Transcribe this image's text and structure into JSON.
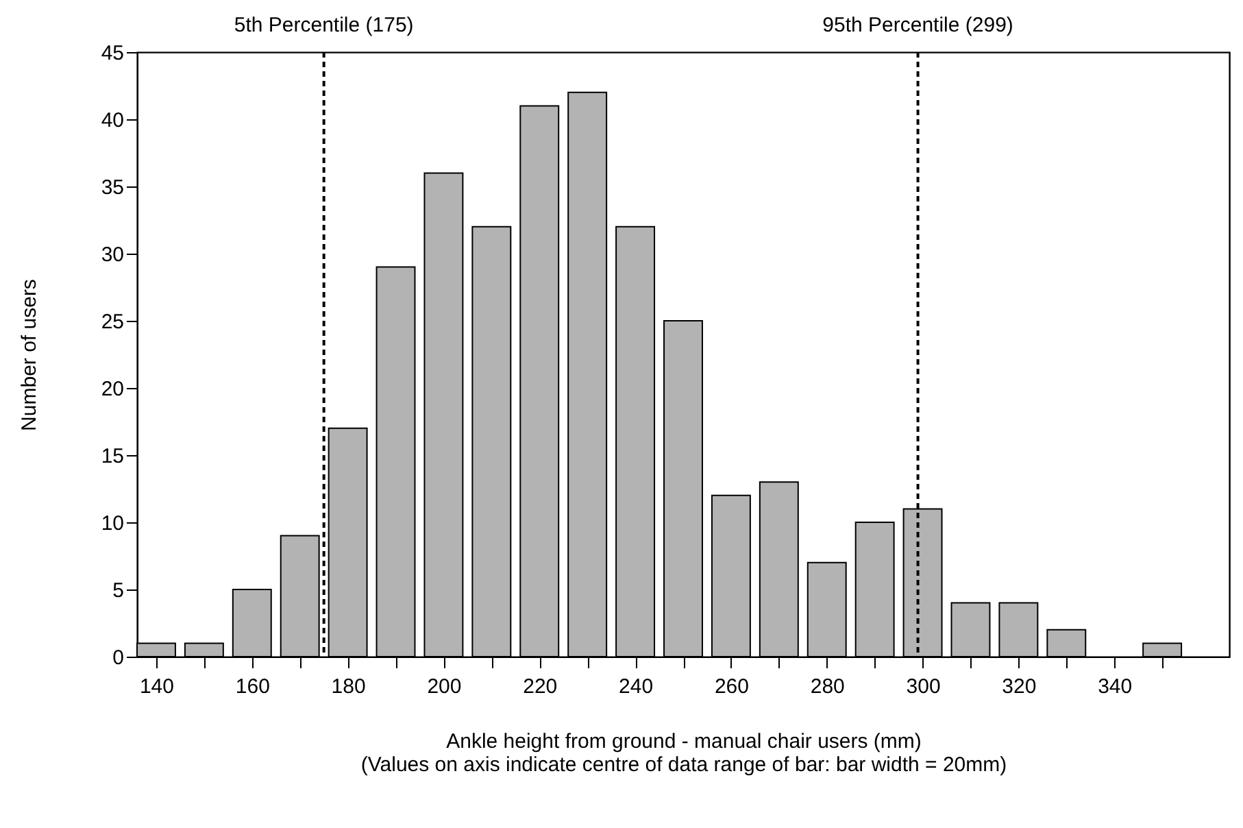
{
  "chart_data": {
    "type": "bar",
    "xlabel": "Ankle height from ground - manual chair users (mm)\n(Values on axis indicate centre of data range of bar: bar width = 20mm)",
    "ylabel": "Number of users",
    "x": [
      140,
      150,
      160,
      170,
      180,
      190,
      200,
      210,
      220,
      230,
      240,
      250,
      260,
      270,
      280,
      290,
      300,
      310,
      320,
      330,
      340,
      350
    ],
    "values": [
      1,
      1,
      5,
      9,
      17,
      29,
      36,
      32,
      41,
      42,
      32,
      25,
      12,
      13,
      7,
      10,
      11,
      4,
      4,
      2,
      0,
      1
    ],
    "color": "#b3b3b3",
    "xlim": [
      136,
      364
    ],
    "xticks": [
      140,
      {
        "value": 150,
        "label": null
      },
      160,
      {
        "value": 170,
        "label": null
      },
      180,
      {
        "value": 190,
        "label": null
      },
      200,
      {
        "value": 210,
        "label": null
      },
      220,
      {
        "value": 230,
        "label": null
      },
      240,
      {
        "value": 250,
        "label": null
      },
      260,
      {
        "value": 270,
        "label": null
      },
      280,
      {
        "value": 290,
        "label": null
      },
      300,
      {
        "value": 310,
        "label": null
      },
      320,
      {
        "value": 330,
        "label": null
      },
      340,
      {
        "value": 350,
        "label": null
      }
    ],
    "ylim": [
      0,
      45
    ],
    "yticks": [
      0,
      5,
      10,
      15,
      20,
      25,
      30,
      35,
      40,
      45
    ],
    "ref_lines": [
      {
        "axis": "x",
        "value": 175,
        "label": "5th Percentile (175)",
        "line_style": "dashed"
      },
      {
        "axis": "x",
        "value": 299,
        "label": "95th Percentile (299)",
        "line_style": "dashed"
      }
    ],
    "grid": false
  }
}
